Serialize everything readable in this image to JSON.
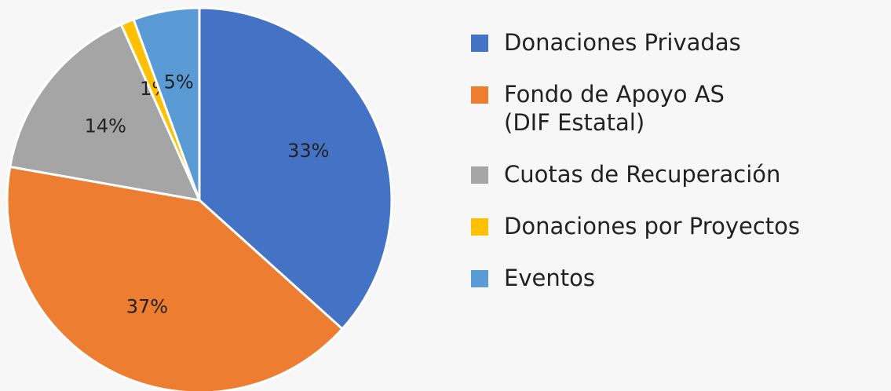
{
  "chart_data": {
    "type": "pie",
    "categories": [
      "Donaciones Privadas",
      "Fondo de Apoyo AS\n(DIF Estatal)",
      "Cuotas de Recuperación",
      "Donaciones por Proyectos",
      "Eventos"
    ],
    "values": [
      33,
      37,
      14,
      1,
      5
    ],
    "value_labels": [
      "33%",
      "37%",
      "14%",
      "1%",
      "5%"
    ],
    "colors": [
      "#4472c4",
      "#ed7d31",
      "#a5a5a5",
      "#ffc000",
      "#5b9bd5"
    ],
    "legend": "right"
  }
}
